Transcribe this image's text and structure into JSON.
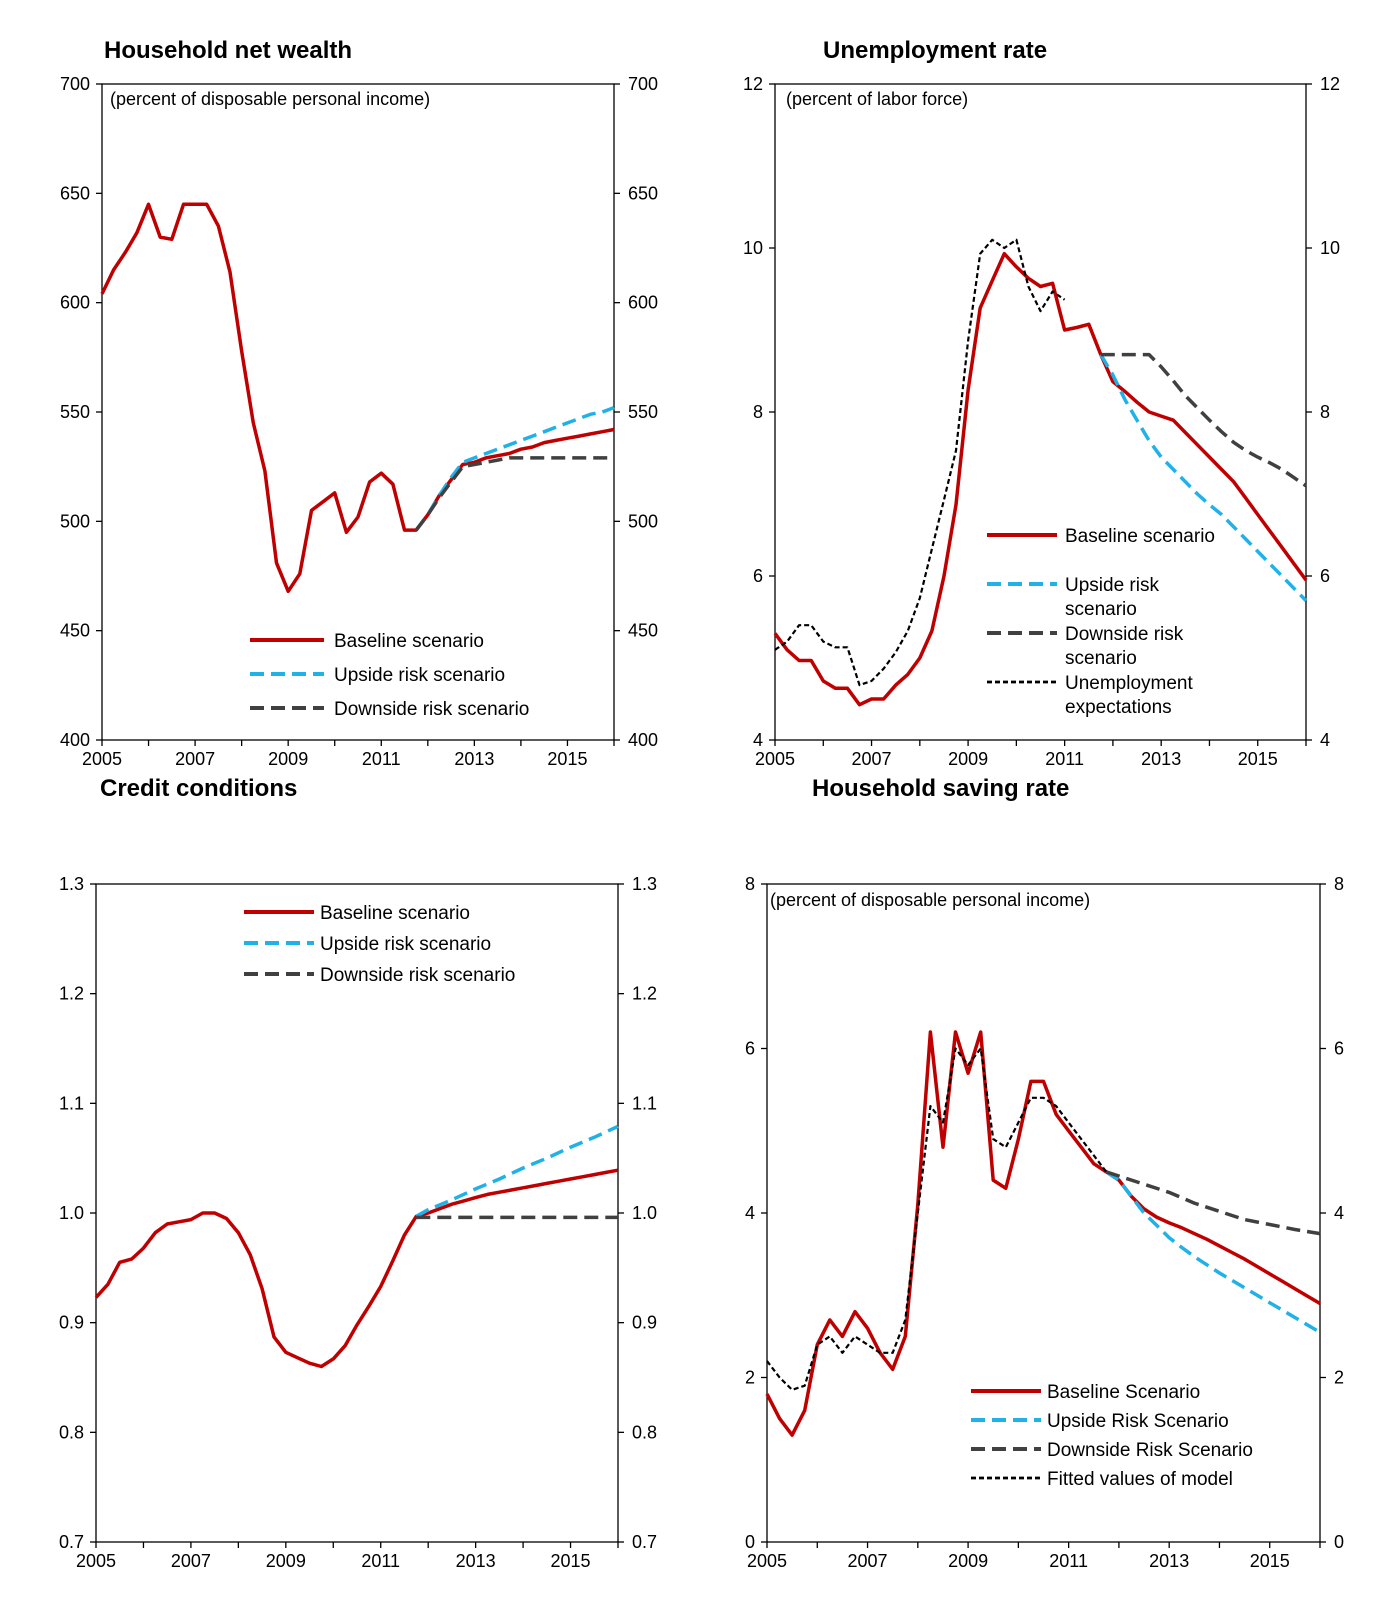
{
  "chart_data": [
    {
      "type": "line",
      "title": "Household net wealth",
      "subtitle": "(percent of disposable personal income)",
      "xlim": [
        2005,
        2016
      ],
      "ylim": [
        400,
        700
      ],
      "yticks": [
        400,
        450,
        500,
        550,
        600,
        650,
        700
      ],
      "xticks": [
        2005,
        2007,
        2009,
        2011,
        2013,
        2015
      ],
      "legend_position": "bottom-center",
      "series": [
        {
          "name": "Baseline scenario",
          "color": "#c00000",
          "style": "solid",
          "x": [
            2005.0,
            2005.25,
            2005.5,
            2005.75,
            2006.0,
            2006.25,
            2006.5,
            2006.75,
            2007.0,
            2007.25,
            2007.5,
            2007.75,
            2008.0,
            2008.25,
            2008.5,
            2008.75,
            2009.0,
            2009.25,
            2009.5,
            2009.75,
            2010.0,
            2010.25,
            2010.5,
            2010.75,
            2011.0,
            2011.25,
            2011.5,
            2011.75,
            2012.0,
            2012.25,
            2012.5,
            2012.75,
            2013.0,
            2013.25,
            2013.5,
            2013.75,
            2014.0,
            2014.25,
            2014.5,
            2014.75,
            2015.0,
            2015.25,
            2015.5,
            2015.75,
            2016.0
          ],
          "y": [
            604,
            615,
            623,
            632,
            645,
            630,
            629,
            645,
            645,
            645,
            635,
            614,
            578,
            545,
            523,
            481,
            468,
            476,
            505,
            509,
            513,
            495,
            502,
            518,
            522,
            517,
            496,
            496,
            503,
            512,
            519,
            526,
            527,
            529,
            530,
            531,
            533,
            534,
            536,
            537,
            538,
            539,
            540,
            541,
            542
          ]
        },
        {
          "name": "Upside risk scenario",
          "color": "#1fb1e8",
          "style": "dashed",
          "x": [
            2011.75,
            2012.0,
            2012.25,
            2012.5,
            2012.75,
            2013.0,
            2013.25,
            2013.5,
            2013.75,
            2014.0,
            2014.25,
            2014.5,
            2014.75,
            2015.0,
            2015.25,
            2015.5,
            2015.75,
            2016.0
          ],
          "y": [
            496,
            503,
            512,
            520,
            527,
            529,
            531,
            533,
            535,
            537,
            539,
            541,
            543,
            545,
            547,
            549,
            550,
            552
          ]
        },
        {
          "name": "Downside risk scenario",
          "color": "#404040",
          "style": "dashed",
          "x": [
            2011.75,
            2012.0,
            2012.25,
            2012.5,
            2012.75,
            2013.0,
            2013.25,
            2013.5,
            2013.75,
            2014.0,
            2014.25,
            2014.5,
            2014.75,
            2015.0,
            2015.25,
            2015.5,
            2015.75,
            2016.0
          ],
          "y": [
            496,
            503,
            511,
            518,
            525,
            526,
            527,
            528,
            529,
            529,
            529,
            529,
            529,
            529,
            529,
            529,
            529,
            529
          ]
        }
      ]
    },
    {
      "type": "line",
      "title": "Unemployment rate",
      "subtitle": "(percent of labor force)",
      "xlim": [
        2005,
        2016
      ],
      "ylim": [
        4,
        12
      ],
      "yticks": [
        4,
        6,
        8,
        10,
        12
      ],
      "xticks": [
        2005,
        2007,
        2009,
        2011,
        2013,
        2015
      ],
      "legend_position": "bottom-right",
      "series": [
        {
          "name": "Baseline scenario",
          "color": "#c00000",
          "style": "solid",
          "x": [
            2005.0,
            2005.25,
            2005.5,
            2005.75,
            2006.0,
            2006.25,
            2006.5,
            2006.75,
            2007.0,
            2007.25,
            2007.5,
            2007.75,
            2008.0,
            2008.25,
            2008.5,
            2008.75,
            2009.0,
            2009.25,
            2009.5,
            2009.75,
            2010.0,
            2010.25,
            2010.5,
            2010.75,
            2011.0,
            2011.25,
            2011.5,
            2011.75,
            2012.0,
            2012.25,
            2012.5,
            2012.75,
            2013.0,
            2013.25,
            2013.5,
            2013.75,
            2014.0,
            2014.25,
            2014.5,
            2014.75,
            2015.0,
            2015.25,
            2015.5,
            2015.75,
            2016.0
          ],
          "y": [
            5.3,
            5.1,
            4.97,
            4.97,
            4.72,
            4.63,
            4.63,
            4.43,
            4.5,
            4.5,
            4.67,
            4.8,
            5.0,
            5.33,
            6.0,
            6.87,
            8.27,
            9.27,
            9.6,
            9.93,
            9.77,
            9.63,
            9.53,
            9.57,
            9.0,
            9.03,
            9.07,
            8.7,
            8.37,
            8.25,
            8.12,
            8.0,
            7.95,
            7.9,
            7.75,
            7.6,
            7.45,
            7.3,
            7.15,
            6.95,
            6.75,
            6.55,
            6.35,
            6.15,
            5.95
          ]
        },
        {
          "name": "Upside risk scenario",
          "color": "#1fb1e8",
          "style": "dashed",
          "x": [
            2011.75,
            2012.0,
            2012.25,
            2012.5,
            2012.75,
            2013.0,
            2013.25,
            2013.5,
            2013.75,
            2014.0,
            2014.25,
            2014.5,
            2014.75,
            2015.0,
            2015.25,
            2015.5,
            2015.75,
            2016.0
          ],
          "y": [
            8.7,
            8.45,
            8.15,
            7.9,
            7.65,
            7.45,
            7.3,
            7.15,
            7.0,
            6.87,
            6.75,
            6.6,
            6.45,
            6.3,
            6.15,
            6.0,
            5.85,
            5.7
          ]
        },
        {
          "name": "Downside risk scenario",
          "color": "#404040",
          "style": "dashed",
          "x": [
            2011.75,
            2012.0,
            2012.25,
            2012.5,
            2012.75,
            2013.0,
            2013.25,
            2013.5,
            2013.75,
            2014.0,
            2014.25,
            2014.5,
            2014.75,
            2015.0,
            2015.25,
            2015.5,
            2015.75,
            2016.0
          ],
          "y": [
            8.7,
            8.7,
            8.7,
            8.7,
            8.7,
            8.55,
            8.38,
            8.2,
            8.05,
            7.9,
            7.76,
            7.63,
            7.53,
            7.45,
            7.38,
            7.3,
            7.2,
            7.1
          ]
        },
        {
          "name": "Unemployment expectations",
          "color": "#000000",
          "style": "dotted",
          "x": [
            2005.0,
            2005.25,
            2005.5,
            2005.75,
            2006.0,
            2006.25,
            2006.5,
            2006.75,
            2007.0,
            2007.25,
            2007.5,
            2007.75,
            2008.0,
            2008.25,
            2008.5,
            2008.75,
            2009.0,
            2009.25,
            2009.5,
            2009.75,
            2010.0,
            2010.25,
            2010.5,
            2010.75,
            2011.0
          ],
          "y": [
            5.1,
            5.2,
            5.4,
            5.4,
            5.2,
            5.13,
            5.13,
            4.67,
            4.72,
            4.87,
            5.07,
            5.33,
            5.73,
            6.33,
            6.93,
            7.53,
            8.87,
            9.93,
            10.1,
            10.0,
            10.1,
            9.53,
            9.23,
            9.47,
            9.37
          ]
        }
      ]
    },
    {
      "type": "line",
      "title": "Credit conditions",
      "subtitle": "",
      "xlim": [
        2005,
        2016
      ],
      "ylim": [
        0.7,
        1.3
      ],
      "yticks": [
        0.7,
        0.8,
        0.9,
        1.0,
        1.1,
        1.2,
        1.3
      ],
      "xticks": [
        2005,
        2007,
        2009,
        2011,
        2013,
        2015
      ],
      "legend_position": "top-center",
      "series": [
        {
          "name": "Baseline scenario",
          "color": "#c00000",
          "style": "solid",
          "x": [
            2005.0,
            2005.25,
            2005.5,
            2005.75,
            2006.0,
            2006.25,
            2006.5,
            2006.75,
            2007.0,
            2007.25,
            2007.5,
            2007.75,
            2008.0,
            2008.25,
            2008.5,
            2008.75,
            2009.0,
            2009.25,
            2009.5,
            2009.75,
            2010.0,
            2010.25,
            2010.5,
            2010.75,
            2011.0,
            2011.25,
            2011.5,
            2011.75,
            2012.0,
            2012.25,
            2012.5,
            2012.75,
            2013.0,
            2013.25,
            2013.5,
            2013.75,
            2014.0,
            2014.25,
            2014.5,
            2014.75,
            2015.0,
            2015.25,
            2015.5,
            2015.75,
            2016.0
          ],
          "y": [
            0.923,
            0.935,
            0.955,
            0.958,
            0.968,
            0.982,
            0.99,
            0.992,
            0.994,
            1.0,
            1.0,
            0.995,
            0.982,
            0.962,
            0.931,
            0.887,
            0.873,
            0.868,
            0.863,
            0.86,
            0.867,
            0.879,
            0.898,
            0.915,
            0.933,
            0.956,
            0.98,
            0.997,
            1.0,
            1.004,
            1.008,
            1.011,
            1.014,
            1.017,
            1.019,
            1.021,
            1.023,
            1.025,
            1.027,
            1.029,
            1.031,
            1.033,
            1.035,
            1.037,
            1.039
          ]
        },
        {
          "name": "Upside risk scenario",
          "color": "#1fb1e8",
          "style": "dashed",
          "x": [
            2011.75,
            2012.0,
            2012.5,
            2013.0,
            2013.5,
            2014.0,
            2014.5,
            2015.0,
            2015.5,
            2016.0
          ],
          "y": [
            0.997,
            1.003,
            1.012,
            1.022,
            1.031,
            1.041,
            1.05,
            1.06,
            1.069,
            1.079
          ]
        },
        {
          "name": "Downside risk scenario",
          "color": "#404040",
          "style": "dashed",
          "x": [
            2011.75,
            2016.0
          ],
          "y": [
            0.996,
            0.996
          ]
        }
      ]
    },
    {
      "type": "line",
      "title": "Household saving rate",
      "subtitle": "(percent of disposable personal income)",
      "xlim": [
        2005,
        2016
      ],
      "ylim": [
        0,
        8
      ],
      "yticks": [
        0,
        2,
        4,
        6,
        8
      ],
      "xticks": [
        2005,
        2007,
        2009,
        2011,
        2013,
        2015
      ],
      "legend_position": "bottom-right",
      "series": [
        {
          "name": "Baseline Scenario",
          "color": "#c00000",
          "style": "solid",
          "x": [
            2005.0,
            2005.25,
            2005.5,
            2005.75,
            2006.0,
            2006.25,
            2006.5,
            2006.75,
            2007.0,
            2007.25,
            2007.5,
            2007.75,
            2008.0,
            2008.25,
            2008.5,
            2008.75,
            2009.0,
            2009.25,
            2009.5,
            2009.75,
            2010.0,
            2010.25,
            2010.5,
            2010.75,
            2011.0,
            2011.25,
            2011.5,
            2011.75,
            2012.0,
            2012.25,
            2012.5,
            2012.75,
            2013.0,
            2013.25,
            2013.5,
            2013.75,
            2014.0,
            2014.25,
            2014.5,
            2014.75,
            2015.0,
            2015.25,
            2015.5,
            2015.75,
            2016.0
          ],
          "y": [
            1.8,
            1.5,
            1.3,
            1.6,
            2.4,
            2.7,
            2.5,
            2.8,
            2.6,
            2.3,
            2.1,
            2.5,
            4.1,
            6.2,
            4.8,
            6.2,
            5.7,
            6.2,
            4.4,
            4.3,
            4.9,
            5.6,
            5.6,
            5.2,
            5.0,
            4.8,
            4.6,
            4.5,
            4.4,
            4.2,
            4.05,
            3.95,
            3.88,
            3.82,
            3.75,
            3.68,
            3.6,
            3.52,
            3.44,
            3.35,
            3.26,
            3.17,
            3.08,
            2.99,
            2.9
          ]
        },
        {
          "name": "Upside Risk Scenario",
          "color": "#1fb1e8",
          "style": "dashed",
          "x": [
            2011.75,
            2012.0,
            2012.25,
            2012.5,
            2012.75,
            2013.0,
            2013.25,
            2013.5,
            2013.75,
            2014.0,
            2014.25,
            2014.5,
            2014.75,
            2015.0,
            2015.25,
            2015.5,
            2015.75,
            2016.0
          ],
          "y": [
            4.5,
            4.4,
            4.2,
            4.0,
            3.85,
            3.7,
            3.58,
            3.47,
            3.37,
            3.27,
            3.18,
            3.09,
            3.0,
            2.91,
            2.82,
            2.73,
            2.64,
            2.55
          ]
        },
        {
          "name": "Downside Risk Scenario",
          "color": "#404040",
          "style": "dashed",
          "x": [
            2011.75,
            2012.0,
            2012.5,
            2013.0,
            2013.5,
            2014.0,
            2014.5,
            2015.0,
            2015.5,
            2016.0
          ],
          "y": [
            4.5,
            4.45,
            4.35,
            4.25,
            4.12,
            4.02,
            3.92,
            3.86,
            3.8,
            3.75
          ]
        },
        {
          "name": "Fitted values of model",
          "color": "#000000",
          "style": "dotted",
          "x": [
            2005.0,
            2005.25,
            2005.5,
            2005.75,
            2006.0,
            2006.25,
            2006.5,
            2006.75,
            2007.0,
            2007.25,
            2007.5,
            2007.75,
            2008.0,
            2008.25,
            2008.5,
            2008.75,
            2009.0,
            2009.25,
            2009.5,
            2009.75,
            2010.0,
            2010.25,
            2010.5,
            2010.75,
            2011.0,
            2011.25,
            2011.5,
            2011.75
          ],
          "y": [
            2.2,
            2.0,
            1.85,
            1.9,
            2.4,
            2.5,
            2.3,
            2.5,
            2.4,
            2.3,
            2.3,
            2.7,
            4.0,
            5.3,
            5.1,
            6.0,
            5.8,
            6.0,
            4.9,
            4.8,
            5.1,
            5.4,
            5.4,
            5.3,
            5.1,
            4.9,
            4.7,
            4.5
          ]
        }
      ]
    }
  ]
}
